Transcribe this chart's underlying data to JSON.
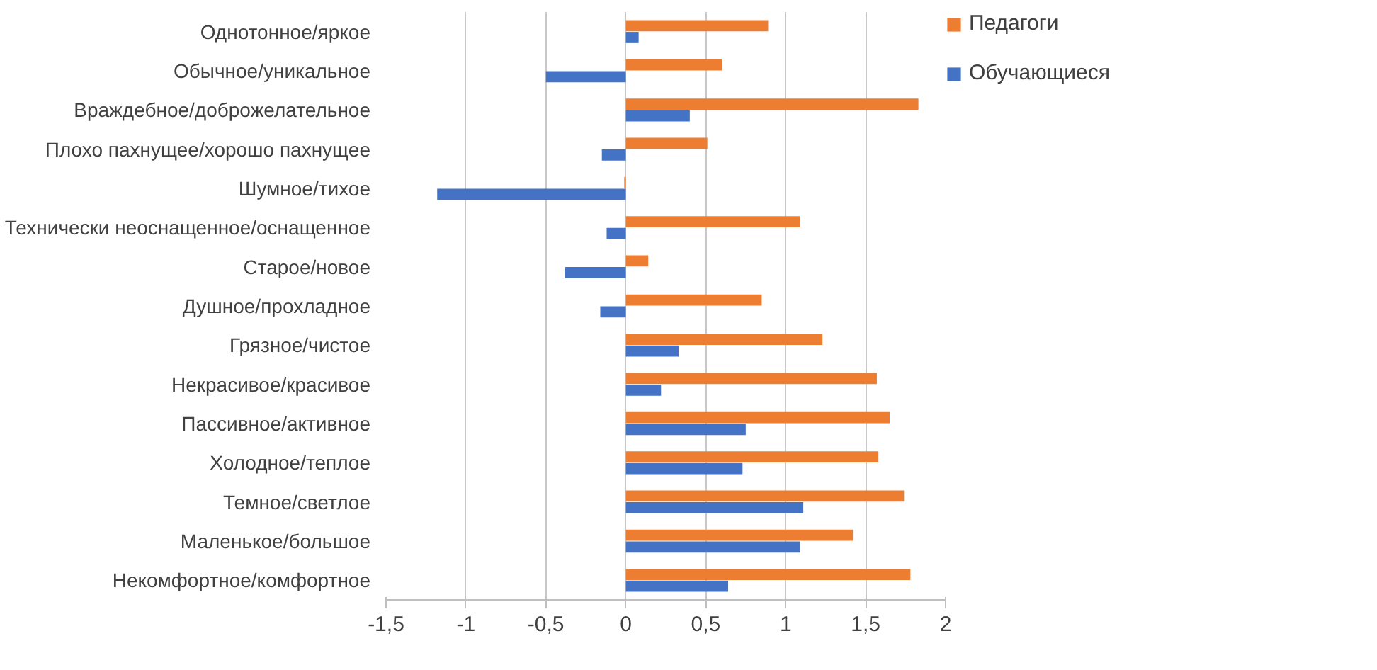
{
  "chart_data": {
    "type": "bar",
    "orientation": "horizontal",
    "categories": [
      "Однотонное/яркое",
      "Обычное/уникальное",
      "Враждебное/доброжелательное",
      "Плохо пахнущее/хорошо пахнущее",
      "Шумное/тихое",
      "Технически неоснащенное/оснащенное",
      "Старое/новое",
      "Душное/прохладное",
      "Грязное/чистое",
      "Некрасивое/красивое",
      "Пассивное/активное",
      "Холодное/теплое",
      "Темное/светлое",
      "Маленькое/большое",
      "Некомфортное/комфортное"
    ],
    "series": [
      {
        "name": "Педагоги",
        "color": "#ed7d31",
        "values": [
          0.89,
          0.6,
          1.83,
          0.51,
          -0.01,
          1.09,
          0.14,
          0.85,
          1.23,
          1.57,
          1.65,
          1.58,
          1.74,
          1.42,
          1.78
        ]
      },
      {
        "name": "Обучающиеся",
        "color": "#4472c4",
        "values": [
          0.08,
          -0.5,
          0.4,
          -0.15,
          -1.18,
          -0.12,
          -0.38,
          -0.16,
          0.33,
          0.22,
          0.75,
          0.73,
          1.11,
          1.09,
          0.64
        ]
      }
    ],
    "xlim": [
      -1.5,
      2
    ],
    "xticks": [
      {
        "value": -1.5,
        "label": "-1,5"
      },
      {
        "value": -1,
        "label": "-1"
      },
      {
        "value": -0.5,
        "label": "-0,5"
      },
      {
        "value": 0,
        "label": "0"
      },
      {
        "value": 0.5,
        "label": "0,5"
      },
      {
        "value": 1,
        "label": "1"
      },
      {
        "value": 1.5,
        "label": "1,5"
      },
      {
        "value": 2,
        "label": "2"
      }
    ],
    "grid": "x",
    "legend": "right"
  }
}
